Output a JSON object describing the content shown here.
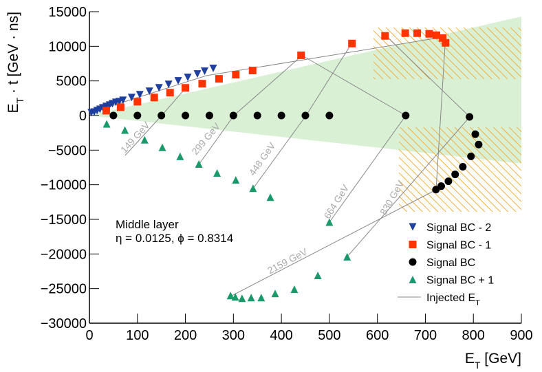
{
  "chart_data": {
    "type": "scatter",
    "xlabel": {
      "main": "E",
      "sub": "T",
      "rest": " [GeV]"
    },
    "ylabel": {
      "main": "E",
      "sub": "T",
      "rest": " · t [GeV · ns]"
    },
    "xlim": [
      0,
      900
    ],
    "ylim": [
      -30000,
      15000
    ],
    "xticks": [
      0,
      100,
      200,
      300,
      400,
      500,
      600,
      700,
      800,
      900
    ],
    "yticks": [
      15000,
      10000,
      5000,
      0,
      {
        "value": -5000,
        "label": "−5000"
      },
      {
        "value": -10000,
        "label": "−10000"
      },
      {
        "value": -15000,
        "label": "−15000"
      },
      {
        "value": -20000,
        "label": "−20000"
      },
      {
        "value": -25000,
        "label": "−25000"
      },
      {
        "value": -30000,
        "label": "−30000"
      }
    ],
    "series": [
      {
        "name": "Signal BC - 2",
        "color": "#1f3f9f",
        "marker": "triangle-down",
        "x": [
          4,
          10,
          16,
          22,
          28,
          35,
          42,
          48,
          55,
          62,
          70,
          88,
          105,
          125,
          145,
          165,
          185,
          205,
          225,
          240,
          258
        ],
        "values": [
          400,
          500,
          700,
          900,
          1100,
          1300,
          1500,
          1700,
          1900,
          2000,
          2200,
          2600,
          3000,
          3500,
          4000,
          4500,
          5000,
          5500,
          6000,
          6400,
          6800
        ]
      },
      {
        "name": "Signal BC - 1",
        "color": "#ff3300",
        "marker": "square",
        "x": [
          35,
          65,
          100,
          135,
          168,
          200,
          235,
          270,
          305,
          340,
          441,
          547,
          616,
          658,
          683,
          708,
          723,
          736,
          742
        ],
        "values": [
          700,
          1200,
          2000,
          2600,
          3300,
          4000,
          4600,
          5300,
          5900,
          6500,
          8700,
          10400,
          11500,
          11900,
          11900,
          11800,
          11600,
          11200,
          10500
        ]
      },
      {
        "name": "Signal BC",
        "color": "#000000",
        "marker": "circle",
        "x": [
          50,
          100,
          150,
          200,
          250,
          300,
          350,
          400,
          450,
          500,
          659,
          792,
          804,
          811,
          795,
          778,
          762,
          748,
          733,
          722
        ],
        "values": [
          0,
          0,
          0,
          0,
          0,
          0,
          0,
          0,
          0,
          0,
          0,
          -200,
          -2700,
          -4200,
          -5900,
          -7400,
          -8500,
          -9500,
          -10200,
          -10700
        ]
      },
      {
        "name": "Signal BC + 1",
        "color": "#1a9a6a",
        "marker": "triangle-up",
        "x": [
          36,
          74,
          115,
          152,
          189,
          228,
          266,
          305,
          341,
          377,
          500,
          537,
          476,
          427,
          387,
          358,
          337,
          318,
          304,
          294
        ],
        "values": [
          -1200,
          -2100,
          -3500,
          -4600,
          -5900,
          -7000,
          -8300,
          -9300,
          -10500,
          -11800,
          -15400,
          -20400,
          -23100,
          -25100,
          -25700,
          -26300,
          -26300,
          -26400,
          -26200,
          -26000
        ]
      }
    ],
    "line_legend": {
      "main": "Injected E",
      "sub": "T"
    },
    "annotations": [
      "Middle layer",
      "η =  0.0125, ϕ = 0.8314",
      "149 GeV",
      "299 GeV",
      "448 GeV",
      "664 GeV",
      "830 GeV",
      "2159 GeV"
    ]
  }
}
